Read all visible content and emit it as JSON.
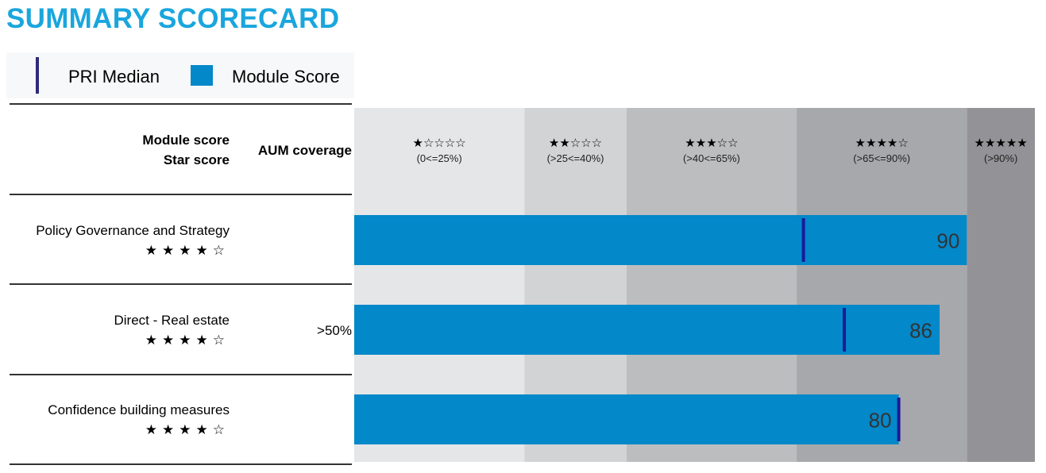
{
  "title": "SUMMARY SCORECARD",
  "legend": {
    "median_label": "PRI Median",
    "score_label": "Module Score"
  },
  "header": {
    "module_score": "Module score",
    "star_score": "Star score",
    "aum_coverage": "AUM coverage"
  },
  "colors": {
    "bar": "#0388c9",
    "median": "#1a1a9a",
    "bands": [
      "#e5e6e8",
      "#d2d3d5",
      "#bcbdbf",
      "#a7a8ab",
      "#939397"
    ]
  },
  "chart_data": {
    "type": "bar",
    "orientation": "horizontal",
    "xlim": [
      0,
      100
    ],
    "bands": [
      {
        "stars": "★☆☆☆☆",
        "range": "(0<=25%)",
        "from": 0,
        "to": 25
      },
      {
        "stars": "★★☆☆☆",
        "range": "(>25<=40%)",
        "from": 25,
        "to": 40
      },
      {
        "stars": "★★★☆☆",
        "range": "(>40<=65%)",
        "from": 40,
        "to": 65
      },
      {
        "stars": "★★★★☆",
        "range": "(>65<=90%)",
        "from": 65,
        "to": 90
      },
      {
        "stars": "★★★★★",
        "range": "(>90%)",
        "from": 90,
        "to": 100
      }
    ],
    "rows": [
      {
        "label": "Policy Governance and Strategy",
        "stars": "★★★★☆",
        "aum": "",
        "score": 90,
        "median": 66
      },
      {
        "label": "Direct - Real estate",
        "stars": "★★★★☆",
        "aum": ">50%",
        "score": 86,
        "median": 72
      },
      {
        "label": "Confidence building measures",
        "stars": "★★★★☆",
        "aum": "",
        "score": 80,
        "median": 80
      }
    ]
  }
}
